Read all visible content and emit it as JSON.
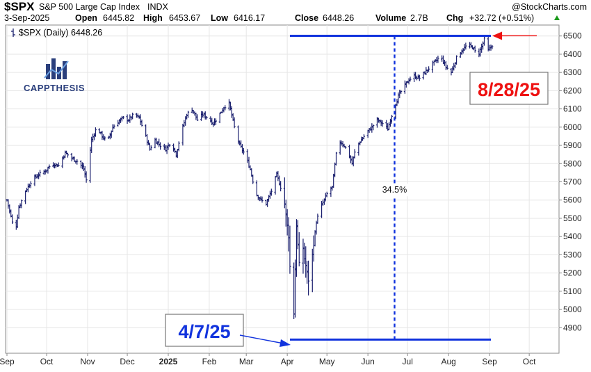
{
  "header": {
    "symbol": "$SPX",
    "name": "S&P 500 Large Cap Index",
    "exchange": "INDX",
    "date": "3-Sep-2025",
    "open_label": "Open",
    "open": "6445.82",
    "high_label": "High",
    "high": "6453.67",
    "low_label": "Low",
    "low": "6416.17",
    "close_label": "Close",
    "close": "6448.26",
    "volume_label": "Volume",
    "volume": "2.7B",
    "chg_label": "Chg",
    "chg": "+32.72 (+0.51%)",
    "source": "@StockCharts.com"
  },
  "legend": {
    "text": "$SPX (Daily) 6448.26"
  },
  "logo": {
    "text": "CAPPTHESIS",
    "icon": "bar-chart-logo-icon"
  },
  "annotations": {
    "low_date": "4/7/25",
    "high_date": "8/28/25",
    "gain_pct": "34.5%",
    "low_level": 4835,
    "high_level": 6501
  },
  "colors": {
    "bars": "#1a1f6e",
    "blue_annotation": "#1133dd",
    "red_annotation": "#ee1111",
    "grid": "#e6e6e6"
  },
  "chart_data": {
    "type": "ohlc",
    "title": "$SPX S&P 500 Large Cap Index INDX",
    "series_name": "$SPX (Daily)",
    "ylim": [
      4760,
      6560
    ],
    "y_ticks": [
      4900,
      5000,
      5100,
      5200,
      5300,
      5400,
      5500,
      5600,
      5700,
      5800,
      5900,
      6000,
      6100,
      6200,
      6300,
      6400,
      6500
    ],
    "x_ticks": [
      {
        "label": "Sep",
        "day": 0
      },
      {
        "label": "Oct",
        "day": 30
      },
      {
        "label": "Nov",
        "day": 61
      },
      {
        "label": "Dec",
        "day": 91
      },
      {
        "label": "2025",
        "day": 122,
        "bold": true
      },
      {
        "label": "Feb",
        "day": 153
      },
      {
        "label": "Mar",
        "day": 181
      },
      {
        "label": "Apr",
        "day": 212
      },
      {
        "label": "May",
        "day": 242
      },
      {
        "label": "Jun",
        "day": 273
      },
      {
        "label": "Jul",
        "day": 303
      },
      {
        "label": "Aug",
        "day": 334
      },
      {
        "label": "Sep",
        "day": 365
      },
      {
        "label": "Oct",
        "day": 395
      }
    ],
    "grid": true,
    "legend_position": "top-left",
    "approx_closes": [
      {
        "day": 0,
        "close": 5600
      },
      {
        "day": 3,
        "close": 5510
      },
      {
        "day": 6,
        "close": 5410
      },
      {
        "day": 9,
        "close": 5560
      },
      {
        "day": 14,
        "close": 5650
      },
      {
        "day": 19,
        "close": 5710
      },
      {
        "day": 24,
        "close": 5740
      },
      {
        "day": 29,
        "close": 5760
      },
      {
        "day": 34,
        "close": 5800
      },
      {
        "day": 39,
        "close": 5790
      },
      {
        "day": 44,
        "close": 5860
      },
      {
        "day": 49,
        "close": 5830
      },
      {
        "day": 54,
        "close": 5810
      },
      {
        "day": 58,
        "close": 5770
      },
      {
        "day": 60,
        "close": 5710
      },
      {
        "day": 64,
        "close": 5930
      },
      {
        "day": 68,
        "close": 6000
      },
      {
        "day": 72,
        "close": 5950
      },
      {
        "day": 76,
        "close": 5920
      },
      {
        "day": 80,
        "close": 6000
      },
      {
        "day": 84,
        "close": 6030
      },
      {
        "day": 88,
        "close": 6050
      },
      {
        "day": 92,
        "close": 6040
      },
      {
        "day": 96,
        "close": 6070
      },
      {
        "day": 100,
        "close": 6050
      },
      {
        "day": 104,
        "close": 5970
      },
      {
        "day": 108,
        "close": 5880
      },
      {
        "day": 112,
        "close": 5930
      },
      {
        "day": 116,
        "close": 5900
      },
      {
        "day": 120,
        "close": 5880
      },
      {
        "day": 124,
        "close": 5920
      },
      {
        "day": 128,
        "close": 5850
      },
      {
        "day": 132,
        "close": 5980
      },
      {
        "day": 136,
        "close": 6070
      },
      {
        "day": 140,
        "close": 6100
      },
      {
        "day": 144,
        "close": 6040
      },
      {
        "day": 148,
        "close": 6070
      },
      {
        "day": 152,
        "close": 6050
      },
      {
        "day": 156,
        "close": 6020
      },
      {
        "day": 160,
        "close": 6060
      },
      {
        "day": 164,
        "close": 6110
      },
      {
        "day": 168,
        "close": 6130
      },
      {
        "day": 172,
        "close": 6000
      },
      {
        "day": 176,
        "close": 5900
      },
      {
        "day": 180,
        "close": 5850
      },
      {
        "day": 184,
        "close": 5770
      },
      {
        "day": 188,
        "close": 5640
      },
      {
        "day": 192,
        "close": 5600
      },
      {
        "day": 196,
        "close": 5580
      },
      {
        "day": 200,
        "close": 5650
      },
      {
        "day": 204,
        "close": 5740
      },
      {
        "day": 207,
        "close": 5670
      },
      {
        "day": 210,
        "close": 5580
      },
      {
        "day": 213,
        "close": 5400
      },
      {
        "day": 215,
        "close": 5070
      },
      {
        "day": 217,
        "close": 4980
      },
      {
        "day": 219,
        "close": 5460
      },
      {
        "day": 221,
        "close": 5250
      },
      {
        "day": 223,
        "close": 5390
      },
      {
        "day": 225,
        "close": 5280
      },
      {
        "day": 228,
        "close": 5160
      },
      {
        "day": 231,
        "close": 5300
      },
      {
        "day": 234,
        "close": 5480
      },
      {
        "day": 237,
        "close": 5560
      },
      {
        "day": 240,
        "close": 5600
      },
      {
        "day": 243,
        "close": 5650
      },
      {
        "day": 246,
        "close": 5670
      },
      {
        "day": 249,
        "close": 5850
      },
      {
        "day": 252,
        "close": 5920
      },
      {
        "day": 255,
        "close": 5900
      },
      {
        "day": 258,
        "close": 5860
      },
      {
        "day": 261,
        "close": 5800
      },
      {
        "day": 264,
        "close": 5890
      },
      {
        "day": 268,
        "close": 5930
      },
      {
        "day": 272,
        "close": 5970
      },
      {
        "day": 276,
        "close": 6000
      },
      {
        "day": 280,
        "close": 6040
      },
      {
        "day": 284,
        "close": 6020
      },
      {
        "day": 288,
        "close": 5990
      },
      {
        "day": 292,
        "close": 6090
      },
      {
        "day": 296,
        "close": 6170
      },
      {
        "day": 300,
        "close": 6220
      },
      {
        "day": 304,
        "close": 6260
      },
      {
        "day": 308,
        "close": 6280
      },
      {
        "day": 312,
        "close": 6270
      },
      {
        "day": 316,
        "close": 6300
      },
      {
        "day": 320,
        "close": 6330
      },
      {
        "day": 324,
        "close": 6360
      },
      {
        "day": 328,
        "close": 6390
      },
      {
        "day": 332,
        "close": 6330
      },
      {
        "day": 336,
        "close": 6300
      },
      {
        "day": 340,
        "close": 6380
      },
      {
        "day": 344,
        "close": 6420
      },
      {
        "day": 348,
        "close": 6450
      },
      {
        "day": 352,
        "close": 6440
      },
      {
        "day": 356,
        "close": 6390
      },
      {
        "day": 360,
        "close": 6460
      },
      {
        "day": 362,
        "close": 6501
      },
      {
        "day": 364,
        "close": 6420
      },
      {
        "day": 367,
        "close": 6448
      }
    ]
  }
}
